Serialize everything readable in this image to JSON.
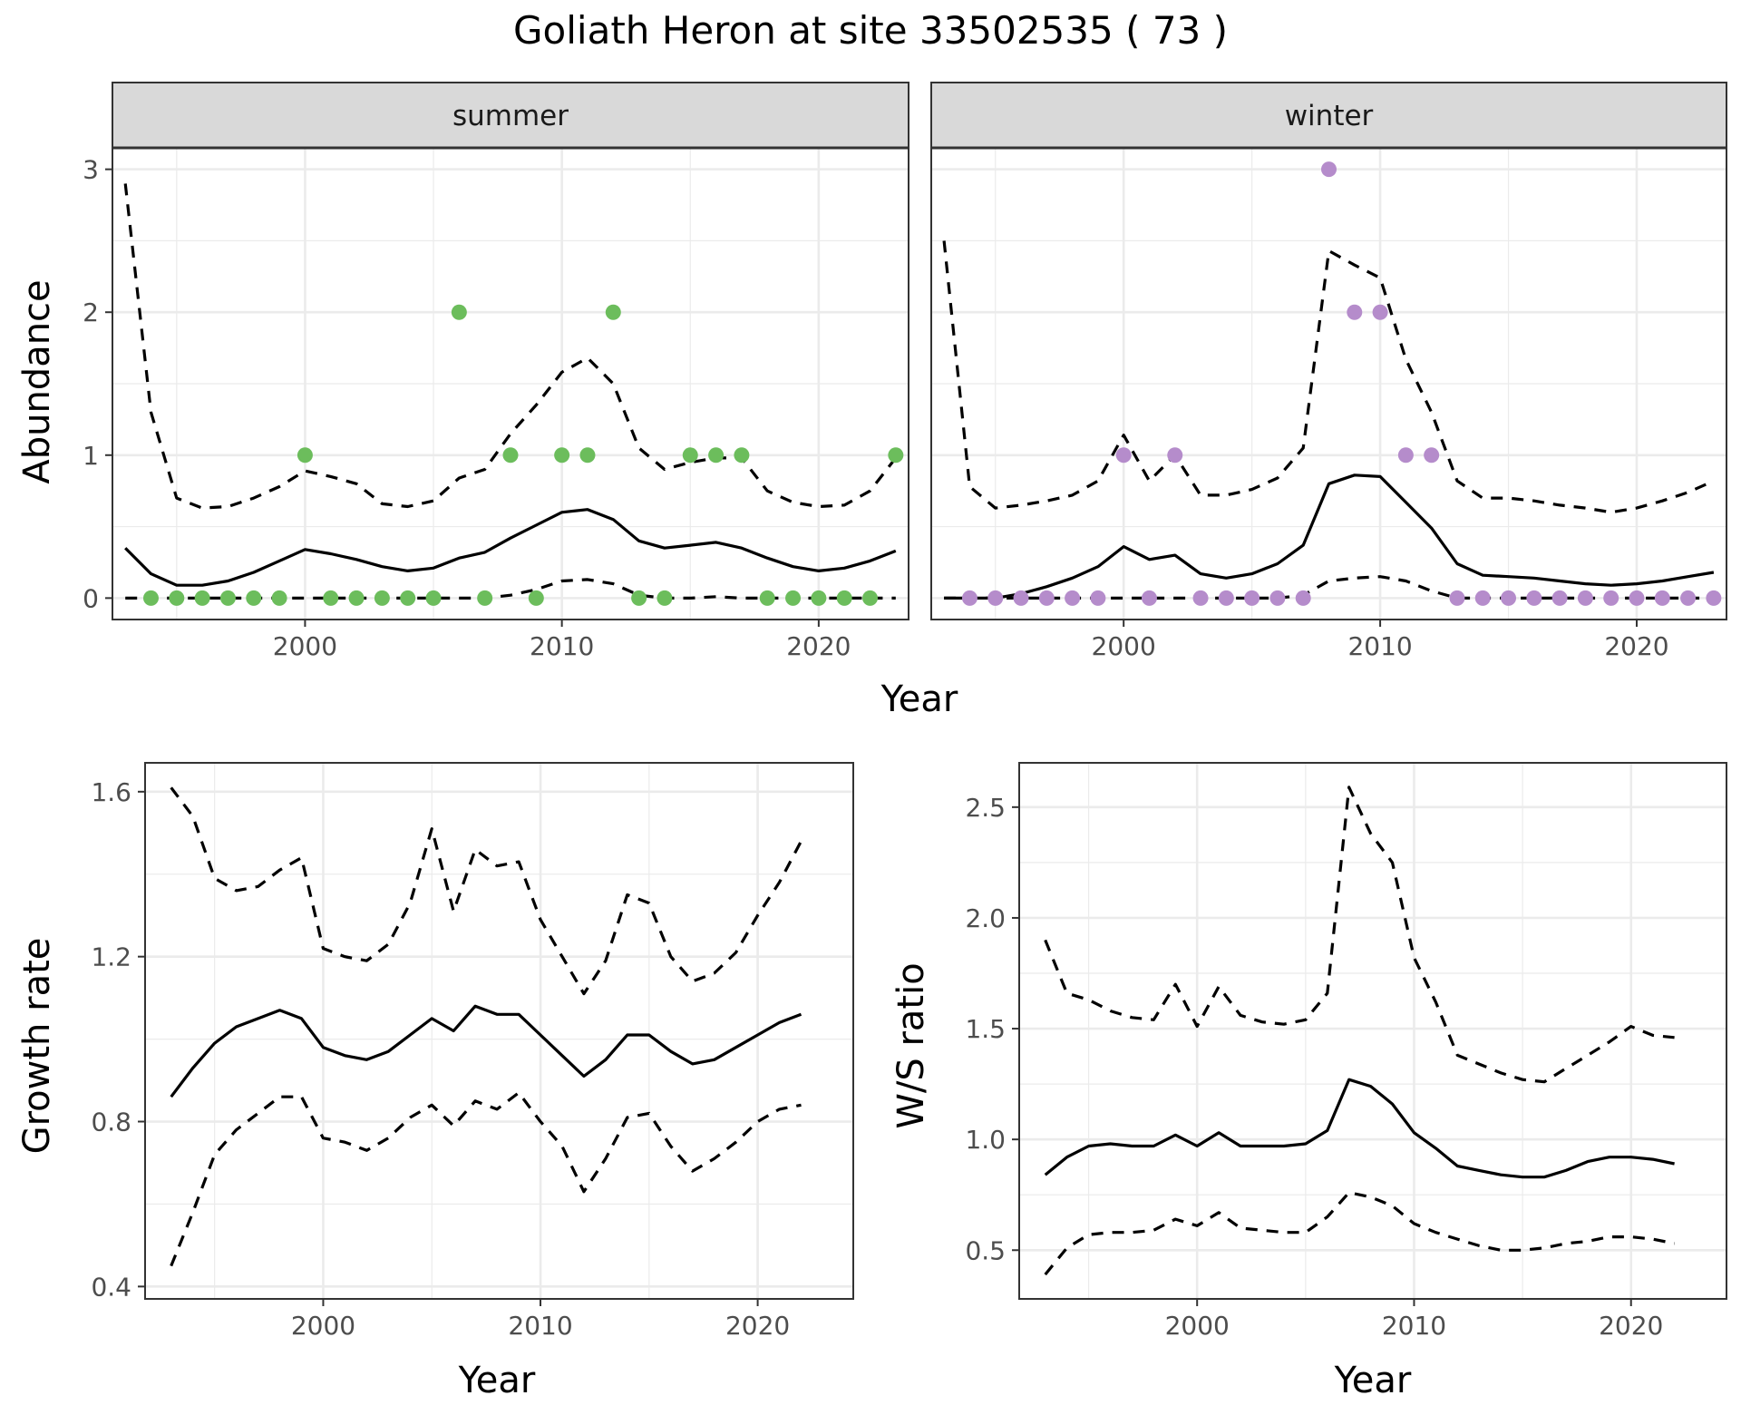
{
  "title": "Goliath Heron at site 33502535 ( 73 )",
  "colors": {
    "summer_points": "#6CBD5C",
    "winter_points": "#B58CCB",
    "lines": "#000000",
    "grid": "#EBEBEB",
    "strip_fill": "#D9D9D9",
    "panel_border": "#333333"
  },
  "chart_data": [
    {
      "id": "abundance",
      "type": "line+scatter",
      "facets": [
        "summer",
        "winter"
      ],
      "xlabel": "Year",
      "ylabel": "Abundance",
      "xlim": [
        1992.5,
        2023.5
      ],
      "ylim": [
        -0.15,
        3.15
      ],
      "xticks": [
        2000,
        2010,
        2020
      ],
      "yticks": [
        0,
        1,
        2,
        3
      ],
      "grid": true,
      "panels": [
        {
          "label": "summer",
          "points": {
            "x": [
              1994,
              1995,
              1996,
              1997,
              1998,
              1999,
              2000,
              2001,
              2002,
              2003,
              2004,
              2005,
              2006,
              2007,
              2008,
              2009,
              2010,
              2011,
              2012,
              2013,
              2014,
              2015,
              2016,
              2017,
              2018,
              2019,
              2020,
              2021,
              2022,
              2023
            ],
            "y": [
              0,
              0,
              0,
              0,
              0,
              0,
              1,
              0,
              0,
              0,
              0,
              0,
              2,
              0,
              1,
              0,
              1,
              1,
              2,
              0,
              0,
              1,
              1,
              1,
              0,
              0,
              0,
              0,
              0,
              1
            ]
          },
          "estimate": {
            "x": [
              1993,
              1994,
              1995,
              1996,
              1997,
              1998,
              1999,
              2000,
              2001,
              2002,
              2003,
              2004,
              2005,
              2006,
              2007,
              2008,
              2009,
              2010,
              2011,
              2012,
              2013,
              2014,
              2015,
              2016,
              2017,
              2018,
              2019,
              2020,
              2021,
              2022,
              2023
            ],
            "y": [
              0.35,
              0.17,
              0.09,
              0.09,
              0.12,
              0.18,
              0.26,
              0.34,
              0.31,
              0.27,
              0.22,
              0.19,
              0.21,
              0.28,
              0.32,
              0.42,
              0.51,
              0.6,
              0.62,
              0.55,
              0.4,
              0.35,
              0.37,
              0.39,
              0.35,
              0.28,
              0.22,
              0.19,
              0.21,
              0.26,
              0.33
            ]
          },
          "upper": {
            "x": [
              1993,
              1994,
              1995,
              1996,
              1997,
              1998,
              1999,
              2000,
              2001,
              2002,
              2003,
              2004,
              2005,
              2006,
              2007,
              2008,
              2009,
              2010,
              2011,
              2012,
              2013,
              2014,
              2015,
              2016,
              2017,
              2018,
              2019,
              2020,
              2021,
              2022,
              2023
            ],
            "y": [
              2.9,
              1.3,
              0.7,
              0.63,
              0.64,
              0.7,
              0.78,
              0.89,
              0.85,
              0.8,
              0.66,
              0.64,
              0.68,
              0.84,
              0.9,
              1.15,
              1.35,
              1.58,
              1.68,
              1.5,
              1.05,
              0.9,
              0.95,
              0.98,
              0.98,
              0.75,
              0.67,
              0.64,
              0.65,
              0.75,
              0.98
            ]
          },
          "lower": {
            "x": [
              1993,
              1994,
              1995,
              1996,
              1997,
              1998,
              1999,
              2000,
              2001,
              2002,
              2003,
              2004,
              2005,
              2006,
              2007,
              2008,
              2009,
              2010,
              2011,
              2012,
              2013,
              2014,
              2015,
              2016,
              2017,
              2018,
              2019,
              2020,
              2021,
              2022,
              2023
            ],
            "y": [
              0,
              0,
              0,
              0,
              0,
              0,
              0,
              0,
              0,
              0,
              0,
              0,
              0,
              0,
              0,
              0.02,
              0.06,
              0.12,
              0.13,
              0.1,
              0.02,
              0,
              0,
              0.01,
              0,
              0,
              0,
              0,
              0,
              0,
              0
            ]
          }
        },
        {
          "label": "winter",
          "points": {
            "x": [
              1994,
              1995,
              1996,
              1997,
              1998,
              1999,
              2000,
              2001,
              2002,
              2003,
              2004,
              2005,
              2006,
              2007,
              2008,
              2009,
              2010,
              2011,
              2012,
              2013,
              2014,
              2015,
              2016,
              2017,
              2018,
              2019,
              2020,
              2021,
              2022,
              2023
            ],
            "y": [
              0,
              0,
              0,
              0,
              0,
              0,
              1,
              0,
              1,
              0,
              0,
              0,
              0,
              0,
              3,
              2,
              2,
              1,
              1,
              0,
              0,
              0,
              0,
              0,
              0,
              0,
              0,
              0,
              0,
              0
            ]
          },
          "estimate": {
            "x": [
              1993,
              1994,
              1995,
              1996,
              1997,
              1998,
              1999,
              2000,
              2001,
              2002,
              2003,
              2004,
              2005,
              2006,
              2007,
              2008,
              2009,
              2010,
              2011,
              2012,
              2013,
              2014,
              2015,
              2016,
              2017,
              2018,
              2019,
              2020,
              2021,
              2022,
              2023
            ],
            "y": [
              0,
              0,
              0,
              0.03,
              0.08,
              0.14,
              0.22,
              0.36,
              0.27,
              0.3,
              0.17,
              0.14,
              0.17,
              0.24,
              0.37,
              0.8,
              0.86,
              0.85,
              0.67,
              0.49,
              0.24,
              0.16,
              0.15,
              0.14,
              0.12,
              0.1,
              0.09,
              0.1,
              0.12,
              0.15,
              0.18
            ]
          },
          "upper": {
            "x": [
              1993,
              1994,
              1995,
              1996,
              1997,
              1998,
              1999,
              2000,
              2001,
              2002,
              2003,
              2004,
              2005,
              2006,
              2007,
              2008,
              2009,
              2010,
              2011,
              2012,
              2013,
              2014,
              2015,
              2016,
              2017,
              2018,
              2019,
              2020,
              2021,
              2022,
              2023
            ],
            "y": [
              2.5,
              0.78,
              0.63,
              0.65,
              0.68,
              0.72,
              0.82,
              1.14,
              0.82,
              1.0,
              0.72,
              0.72,
              0.76,
              0.84,
              1.05,
              2.43,
              2.33,
              2.24,
              1.67,
              1.3,
              0.82,
              0.7,
              0.7,
              0.68,
              0.65,
              0.63,
              0.6,
              0.63,
              0.68,
              0.74,
              0.82
            ]
          },
          "lower": {
            "x": [
              1993,
              1994,
              1995,
              1996,
              1997,
              1998,
              1999,
              2000,
              2001,
              2002,
              2003,
              2004,
              2005,
              2006,
              2007,
              2008,
              2009,
              2010,
              2011,
              2012,
              2013,
              2014,
              2015,
              2016,
              2017,
              2018,
              2019,
              2020,
              2021,
              2022,
              2023
            ],
            "y": [
              0,
              0,
              0,
              0,
              0,
              0,
              0,
              0,
              0,
              0,
              0,
              0,
              0,
              0,
              0.02,
              0.12,
              0.14,
              0.15,
              0.12,
              0.05,
              0,
              0,
              0,
              0,
              0,
              0,
              0,
              0,
              0,
              0,
              0
            ]
          }
        }
      ]
    },
    {
      "id": "growth",
      "type": "line",
      "xlabel": "Year",
      "ylabel": "Growth rate",
      "xlim": [
        1991.8,
        2024.4
      ],
      "ylim": [
        0.37,
        1.67
      ],
      "xticks": [
        2000,
        2010,
        2020
      ],
      "yticks": [
        0.4,
        0.8,
        1.2,
        1.6
      ],
      "ytick_labels": [
        "0.4",
        "0.8",
        "1.2",
        "1.6"
      ],
      "grid": true,
      "x": [
        1993,
        1994,
        1995,
        1996,
        1997,
        1998,
        1999,
        2000,
        2001,
        2002,
        2003,
        2004,
        2005,
        2006,
        2007,
        2008,
        2009,
        2010,
        2011,
        2012,
        2013,
        2014,
        2015,
        2016,
        2017,
        2018,
        2019,
        2020,
        2021,
        2022
      ],
      "estimate": [
        0.86,
        0.93,
        0.99,
        1.03,
        1.05,
        1.07,
        1.05,
        0.98,
        0.96,
        0.95,
        0.97,
        1.01,
        1.05,
        1.02,
        1.08,
        1.06,
        1.06,
        1.01,
        0.96,
        0.91,
        0.95,
        1.01,
        1.01,
        0.97,
        0.94,
        0.95,
        0.98,
        1.01,
        1.04,
        1.06
      ],
      "upper": [
        1.61,
        1.54,
        1.39,
        1.36,
        1.37,
        1.41,
        1.44,
        1.22,
        1.2,
        1.19,
        1.23,
        1.33,
        1.51,
        1.31,
        1.46,
        1.42,
        1.43,
        1.29,
        1.2,
        1.11,
        1.19,
        1.35,
        1.33,
        1.2,
        1.14,
        1.16,
        1.21,
        1.3,
        1.38,
        1.48
      ],
      "lower": [
        0.45,
        0.58,
        0.72,
        0.78,
        0.82,
        0.86,
        0.86,
        0.76,
        0.75,
        0.73,
        0.76,
        0.81,
        0.84,
        0.79,
        0.85,
        0.83,
        0.87,
        0.8,
        0.74,
        0.63,
        0.71,
        0.81,
        0.82,
        0.74,
        0.68,
        0.71,
        0.75,
        0.8,
        0.83,
        0.84
      ]
    },
    {
      "id": "ws_ratio",
      "type": "line",
      "xlabel": "Year",
      "ylabel": "W/S ratio",
      "xlim": [
        1991.8,
        2024.4
      ],
      "ylim": [
        0.28,
        2.7
      ],
      "xticks": [
        2000,
        2010,
        2020
      ],
      "yticks": [
        0.5,
        1.0,
        1.5,
        2.0,
        2.5
      ],
      "ytick_labels": [
        "0.5",
        "1.0",
        "1.5",
        "2.0",
        "2.5"
      ],
      "grid": true,
      "x": [
        1993,
        1994,
        1995,
        1996,
        1997,
        1998,
        1999,
        2000,
        2001,
        2002,
        2003,
        2004,
        2005,
        2006,
        2007,
        2008,
        2009,
        2010,
        2011,
        2012,
        2013,
        2014,
        2015,
        2016,
        2017,
        2018,
        2019,
        2020,
        2021,
        2022
      ],
      "estimate": [
        0.84,
        0.92,
        0.97,
        0.98,
        0.97,
        0.97,
        1.02,
        0.97,
        1.03,
        0.97,
        0.97,
        0.97,
        0.98,
        1.04,
        1.27,
        1.24,
        1.16,
        1.03,
        0.96,
        0.88,
        0.86,
        0.84,
        0.83,
        0.83,
        0.86,
        0.9,
        0.92,
        0.92,
        0.91,
        0.89
      ],
      "upper": [
        1.9,
        1.66,
        1.63,
        1.58,
        1.55,
        1.54,
        1.7,
        1.51,
        1.69,
        1.56,
        1.53,
        1.52,
        1.54,
        1.66,
        2.59,
        2.38,
        2.25,
        1.82,
        1.62,
        1.38,
        1.34,
        1.3,
        1.27,
        1.26,
        1.32,
        1.38,
        1.44,
        1.51,
        1.47,
        1.46
      ],
      "lower": [
        0.39,
        0.51,
        0.57,
        0.58,
        0.58,
        0.59,
        0.64,
        0.61,
        0.67,
        0.6,
        0.59,
        0.58,
        0.58,
        0.65,
        0.76,
        0.74,
        0.7,
        0.62,
        0.58,
        0.55,
        0.52,
        0.5,
        0.5,
        0.51,
        0.53,
        0.54,
        0.56,
        0.56,
        0.55,
        0.53
      ]
    }
  ]
}
